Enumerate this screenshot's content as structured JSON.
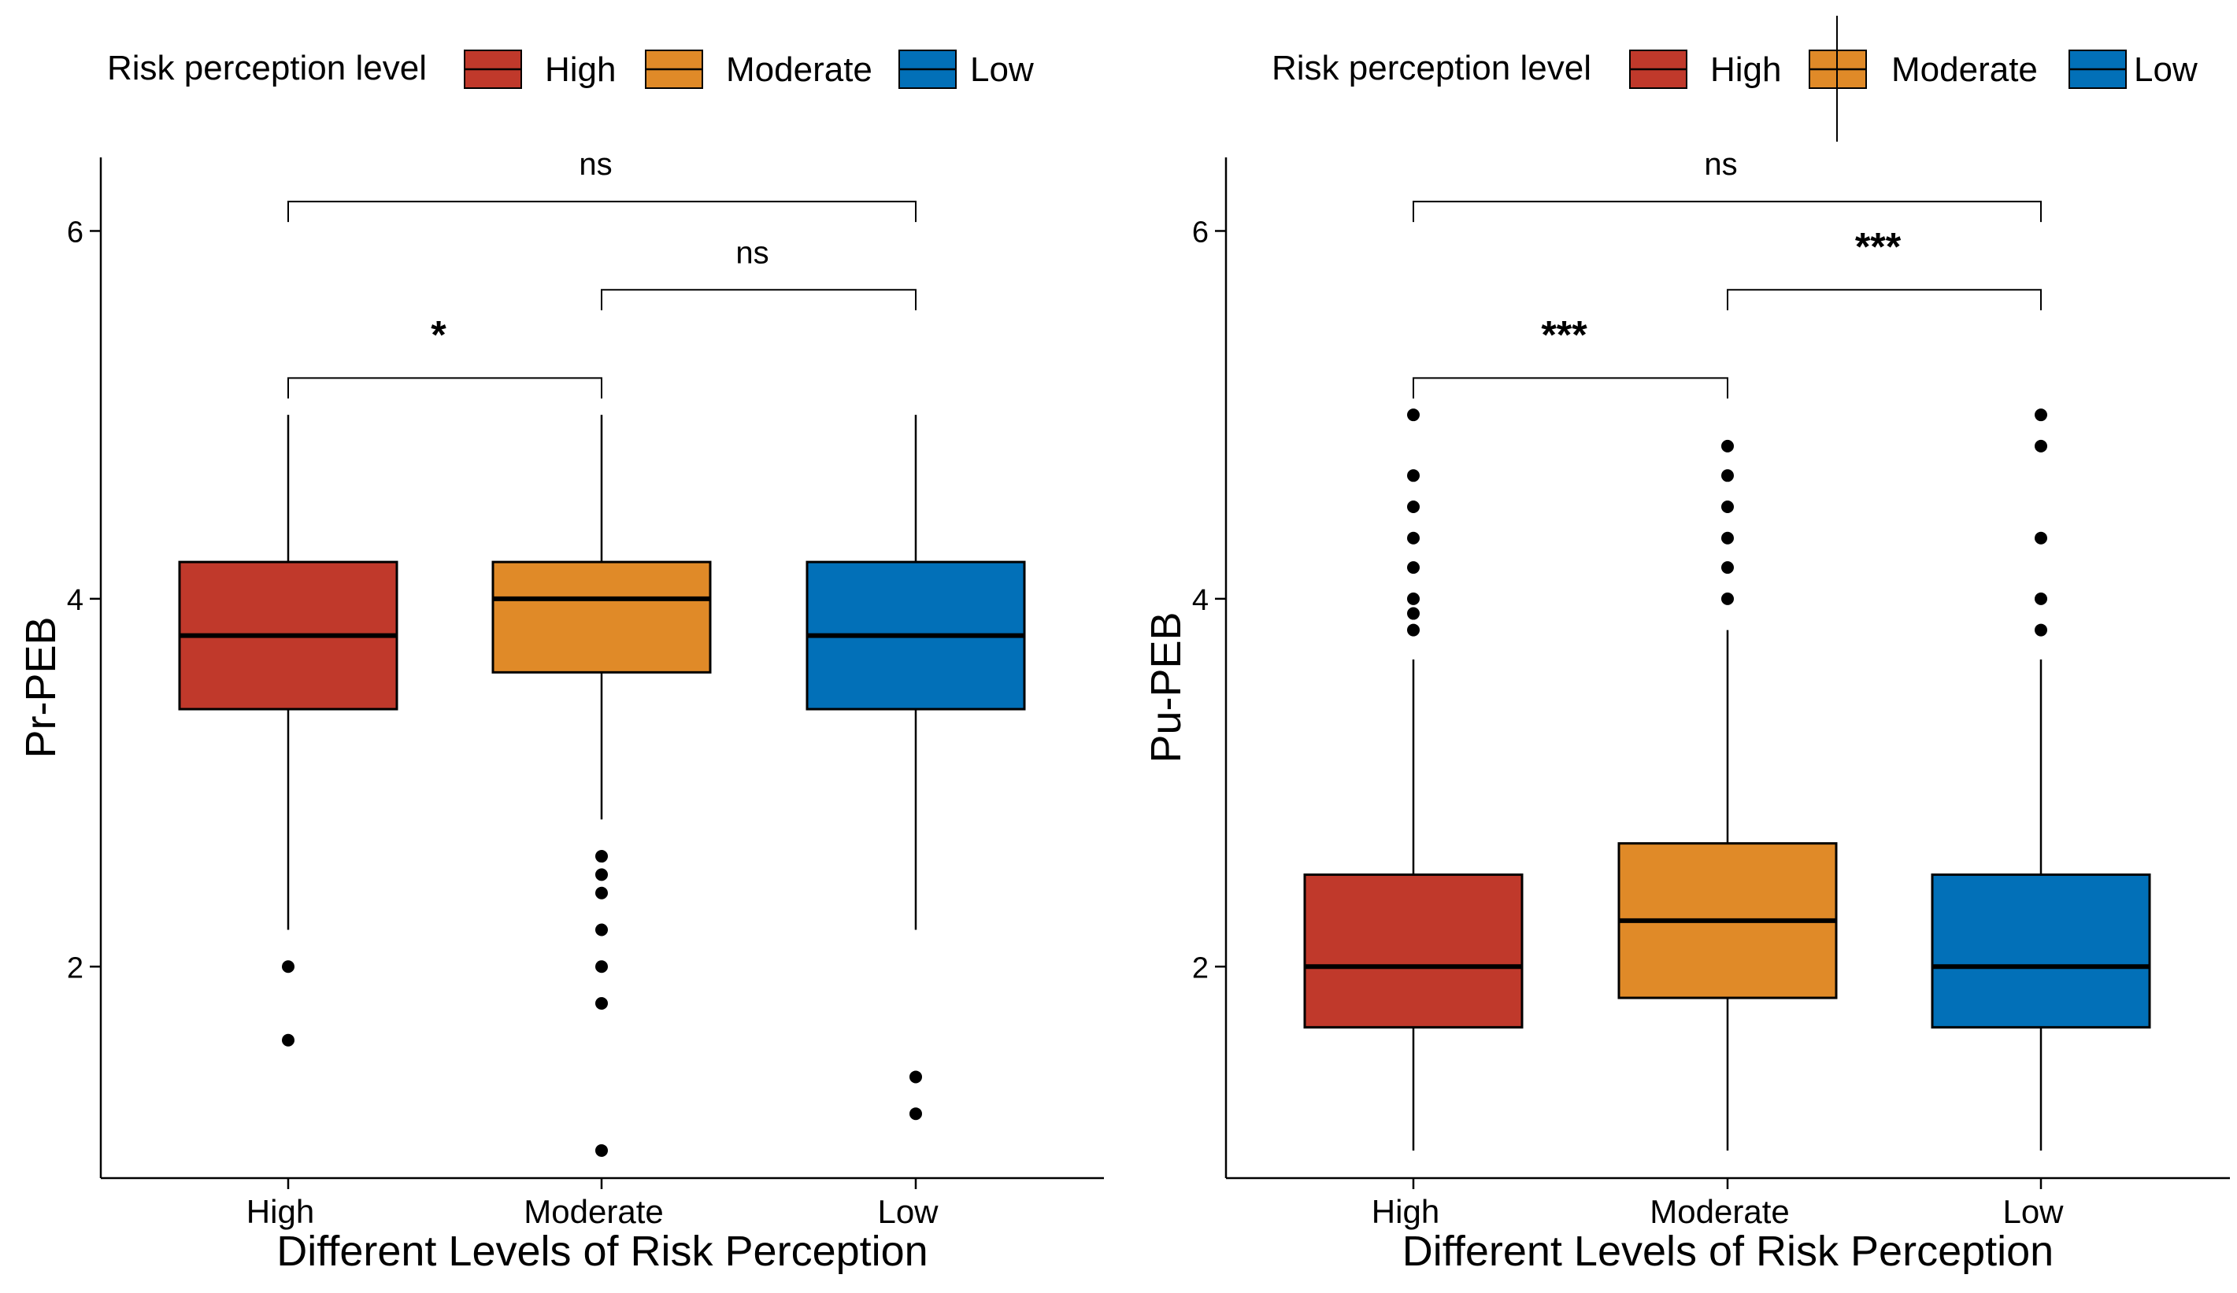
{
  "chart_data": [
    {
      "type": "boxplot",
      "panel": "left",
      "legend": {
        "title": "Risk perception level",
        "position": "top",
        "entries": [
          {
            "label": "High",
            "color": "#c0392b"
          },
          {
            "label": "Moderate",
            "color": "#e08a28"
          },
          {
            "label": "Low",
            "color": "#0270b8"
          }
        ]
      },
      "xlabel": "Different Levels of Risk Perception",
      "ylabel": "Pr-PEB",
      "ylim": [
        0.85,
        6.4
      ],
      "yticks": [
        2,
        4,
        6
      ],
      "grid": false,
      "categories": [
        "High",
        "Moderate",
        "Low"
      ],
      "boxes": [
        {
          "category": "High",
          "lower_whisker": 2.2,
          "q1": 3.4,
          "median": 3.8,
          "q3": 4.2,
          "upper_whisker": 5.0,
          "outliers": [
            2.0,
            1.6
          ],
          "color": "#c0392b"
        },
        {
          "category": "Moderate",
          "lower_whisker": 2.8,
          "q1": 3.6,
          "median": 4.0,
          "q3": 4.2,
          "upper_whisker": 5.0,
          "outliers": [
            2.6,
            2.5,
            2.4,
            2.2,
            2.0,
            1.8,
            1.0
          ],
          "color": "#e08a28"
        },
        {
          "category": "Low",
          "lower_whisker": 2.2,
          "q1": 3.4,
          "median": 3.8,
          "q3": 4.2,
          "upper_whisker": 5.0,
          "outliers": [
            1.4,
            1.2
          ],
          "color": "#0270b8"
        }
      ],
      "comparisons": [
        {
          "from": "High",
          "to": "Moderate",
          "y": 5.2,
          "label": "*"
        },
        {
          "from": "Moderate",
          "to": "Low",
          "y": 5.68,
          "label": "ns"
        },
        {
          "from": "High",
          "to": "Low",
          "y": 6.16,
          "label": "ns"
        }
      ]
    },
    {
      "type": "boxplot",
      "panel": "right",
      "legend": {
        "title": "Risk perception level",
        "position": "top",
        "entries": [
          {
            "label": "High",
            "color": "#c0392b"
          },
          {
            "label": "Moderate",
            "color": "#e08a28"
          },
          {
            "label": "Low",
            "color": "#0270b8"
          }
        ]
      },
      "xlabel": "Different Levels of Risk Perception",
      "ylabel": "Pu-PEB",
      "ylim": [
        0.85,
        6.4
      ],
      "yticks": [
        2,
        4,
        6
      ],
      "grid": false,
      "categories": [
        "High",
        "Moderate",
        "Low"
      ],
      "boxes": [
        {
          "category": "High",
          "lower_whisker": 1.0,
          "q1": 1.67,
          "median": 2.0,
          "q3": 2.5,
          "upper_whisker": 3.67,
          "outliers": [
            5.0,
            4.67,
            4.5,
            4.33,
            4.17,
            4.0,
            3.92,
            3.83
          ],
          "color": "#c0392b"
        },
        {
          "category": "Moderate",
          "lower_whisker": 1.0,
          "q1": 1.83,
          "median": 2.25,
          "q3": 2.67,
          "upper_whisker": 3.83,
          "outliers": [
            4.83,
            4.67,
            4.5,
            4.33,
            4.17,
            4.0
          ],
          "color": "#e08a28"
        },
        {
          "category": "Low",
          "lower_whisker": 1.0,
          "q1": 1.67,
          "median": 2.0,
          "q3": 2.5,
          "upper_whisker": 3.67,
          "outliers": [
            5.0,
            4.83,
            4.33,
            4.0,
            3.83
          ],
          "color": "#0270b8"
        }
      ],
      "comparisons": [
        {
          "from": "High",
          "to": "Moderate",
          "y": 5.2,
          "label": "***"
        },
        {
          "from": "Moderate",
          "to": "Low",
          "y": 5.68,
          "label": "***"
        },
        {
          "from": "High",
          "to": "Low",
          "y": 6.16,
          "label": "ns"
        }
      ]
    }
  ]
}
